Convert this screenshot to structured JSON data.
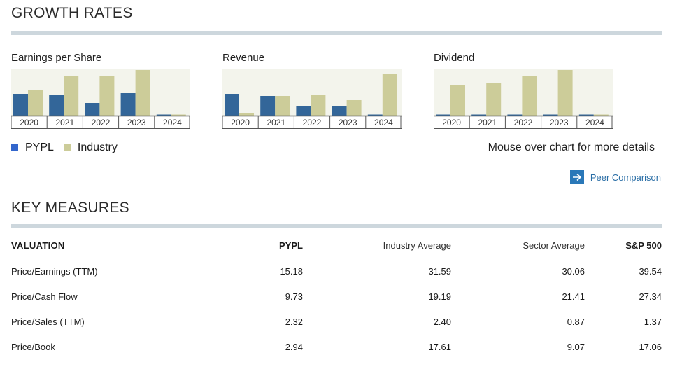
{
  "growth": {
    "title": "GROWTH RATES",
    "colors": {
      "pypl": "#336699",
      "industry": "#cccc99",
      "plot_bg": "#f3f4ec",
      "axis": "#555555"
    },
    "charts": [
      {
        "title": "Earnings per Share",
        "chart_data": {
          "type": "bar",
          "categories": [
            "2020",
            "2021",
            "2022",
            "2023",
            "2024"
          ],
          "series": [
            {
              "name": "PYPL",
              "values": [
                31,
                29,
                18,
                32,
                1
              ]
            },
            {
              "name": "Industry",
              "values": [
                37,
                57,
                56,
                65,
                1
              ]
            }
          ],
          "ylim": [
            0,
            66
          ]
        }
      },
      {
        "title": "Revenue",
        "chart_data": {
          "type": "bar",
          "categories": [
            "2020",
            "2021",
            "2022",
            "2023",
            "2024"
          ],
          "series": [
            {
              "name": "PYPL",
              "values": [
                31,
                28,
                14,
                14,
                1
              ]
            },
            {
              "name": "Industry",
              "values": [
                4,
                28,
                30,
                22,
                60
              ]
            }
          ],
          "ylim": [
            0,
            66
          ]
        }
      },
      {
        "title": "Dividend",
        "chart_data": {
          "type": "bar",
          "categories": [
            "2020",
            "2021",
            "2022",
            "2023",
            "2024"
          ],
          "series": [
            {
              "name": "PYPL",
              "values": [
                1,
                1,
                1,
                1,
                1
              ]
            },
            {
              "name": "Industry",
              "values": [
                44,
                47,
                56,
                65,
                1
              ]
            }
          ],
          "ylim": [
            0,
            66
          ]
        }
      }
    ],
    "legend": [
      {
        "label": "PYPL",
        "color": "#3366cc"
      },
      {
        "label": "Industry",
        "color": "#cccc99"
      }
    ],
    "hint": "Mouse over chart for more details",
    "peer_link": "Peer Comparison",
    "peer_icon": "arrow-right-icon"
  },
  "key_measures": {
    "title": "KEY MEASURES",
    "headers": [
      "VALUATION",
      "PYPL",
      "Industry Average",
      "Sector Average",
      "S&P 500"
    ],
    "rows": [
      {
        "label": "Price/Earnings (TTM)",
        "pypl": "15.18",
        "industry": "31.59",
        "sector": "30.06",
        "sp500": "39.54"
      },
      {
        "label": "Price/Cash Flow",
        "pypl": "9.73",
        "industry": "19.19",
        "sector": "21.41",
        "sp500": "27.34"
      },
      {
        "label": "Price/Sales (TTM)",
        "pypl": "2.32",
        "industry": "2.40",
        "sector": "0.87",
        "sp500": "1.37"
      },
      {
        "label": "Price/Book",
        "pypl": "2.94",
        "industry": "17.61",
        "sector": "9.07",
        "sp500": "17.06"
      }
    ]
  }
}
